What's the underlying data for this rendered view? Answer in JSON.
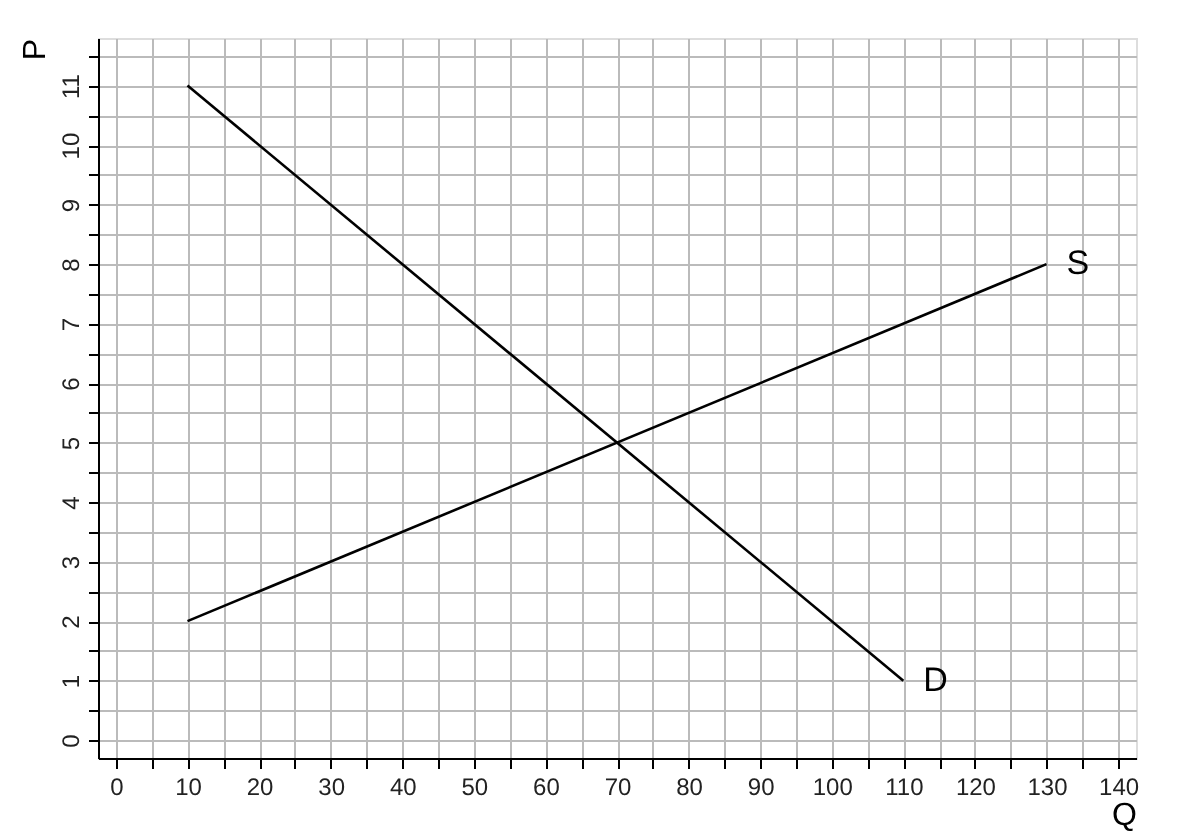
{
  "chart_data": {
    "type": "line",
    "xlabel": "Q",
    "ylabel": "P",
    "xlim": [
      -2.5,
      142.5
    ],
    "ylim": [
      -0.3,
      11.8
    ],
    "xticks": [
      0,
      {
        "value": 5,
        "label": null
      },
      10,
      {
        "value": 15,
        "label": null
      },
      20,
      {
        "value": 25,
        "label": null
      },
      30,
      {
        "value": 35,
        "label": null
      },
      40,
      {
        "value": 45,
        "label": null
      },
      50,
      {
        "value": 55,
        "label": null
      },
      60,
      {
        "value": 65,
        "label": null
      },
      70,
      {
        "value": 75,
        "label": null
      },
      80,
      {
        "value": 85,
        "label": null
      },
      90,
      {
        "value": 95,
        "label": null
      },
      100,
      {
        "value": 105,
        "label": null
      },
      110,
      {
        "value": 115,
        "label": null
      },
      120,
      {
        "value": 125,
        "label": null
      },
      130,
      {
        "value": 135,
        "label": null
      },
      140
    ],
    "yticks": [
      0,
      {
        "value": 0.5,
        "label": null
      },
      1,
      {
        "value": 1.5,
        "label": null
      },
      2,
      {
        "value": 2.5,
        "label": null
      },
      3,
      {
        "value": 3.5,
        "label": null
      },
      4,
      {
        "value": 4.5,
        "label": null
      },
      5,
      {
        "value": 5.5,
        "label": null
      },
      6,
      {
        "value": 6.5,
        "label": null
      },
      7,
      {
        "value": 7.5,
        "label": null
      },
      8,
      {
        "value": 8.5,
        "label": null
      },
      9,
      {
        "value": 9.5,
        "label": null
      },
      10,
      {
        "value": 10.5,
        "label": null
      },
      11,
      {
        "value": 11.5,
        "label": null
      }
    ],
    "grid": true,
    "legend": false,
    "marker": "none",
    "line_style": "solid",
    "series": [
      {
        "name": "D",
        "color": "#000000",
        "x": [
          10,
          110
        ],
        "values": [
          11,
          1
        ]
      },
      {
        "name": "S",
        "color": "#000000",
        "x": [
          10,
          130
        ],
        "values": [
          2,
          8
        ]
      }
    ]
  }
}
